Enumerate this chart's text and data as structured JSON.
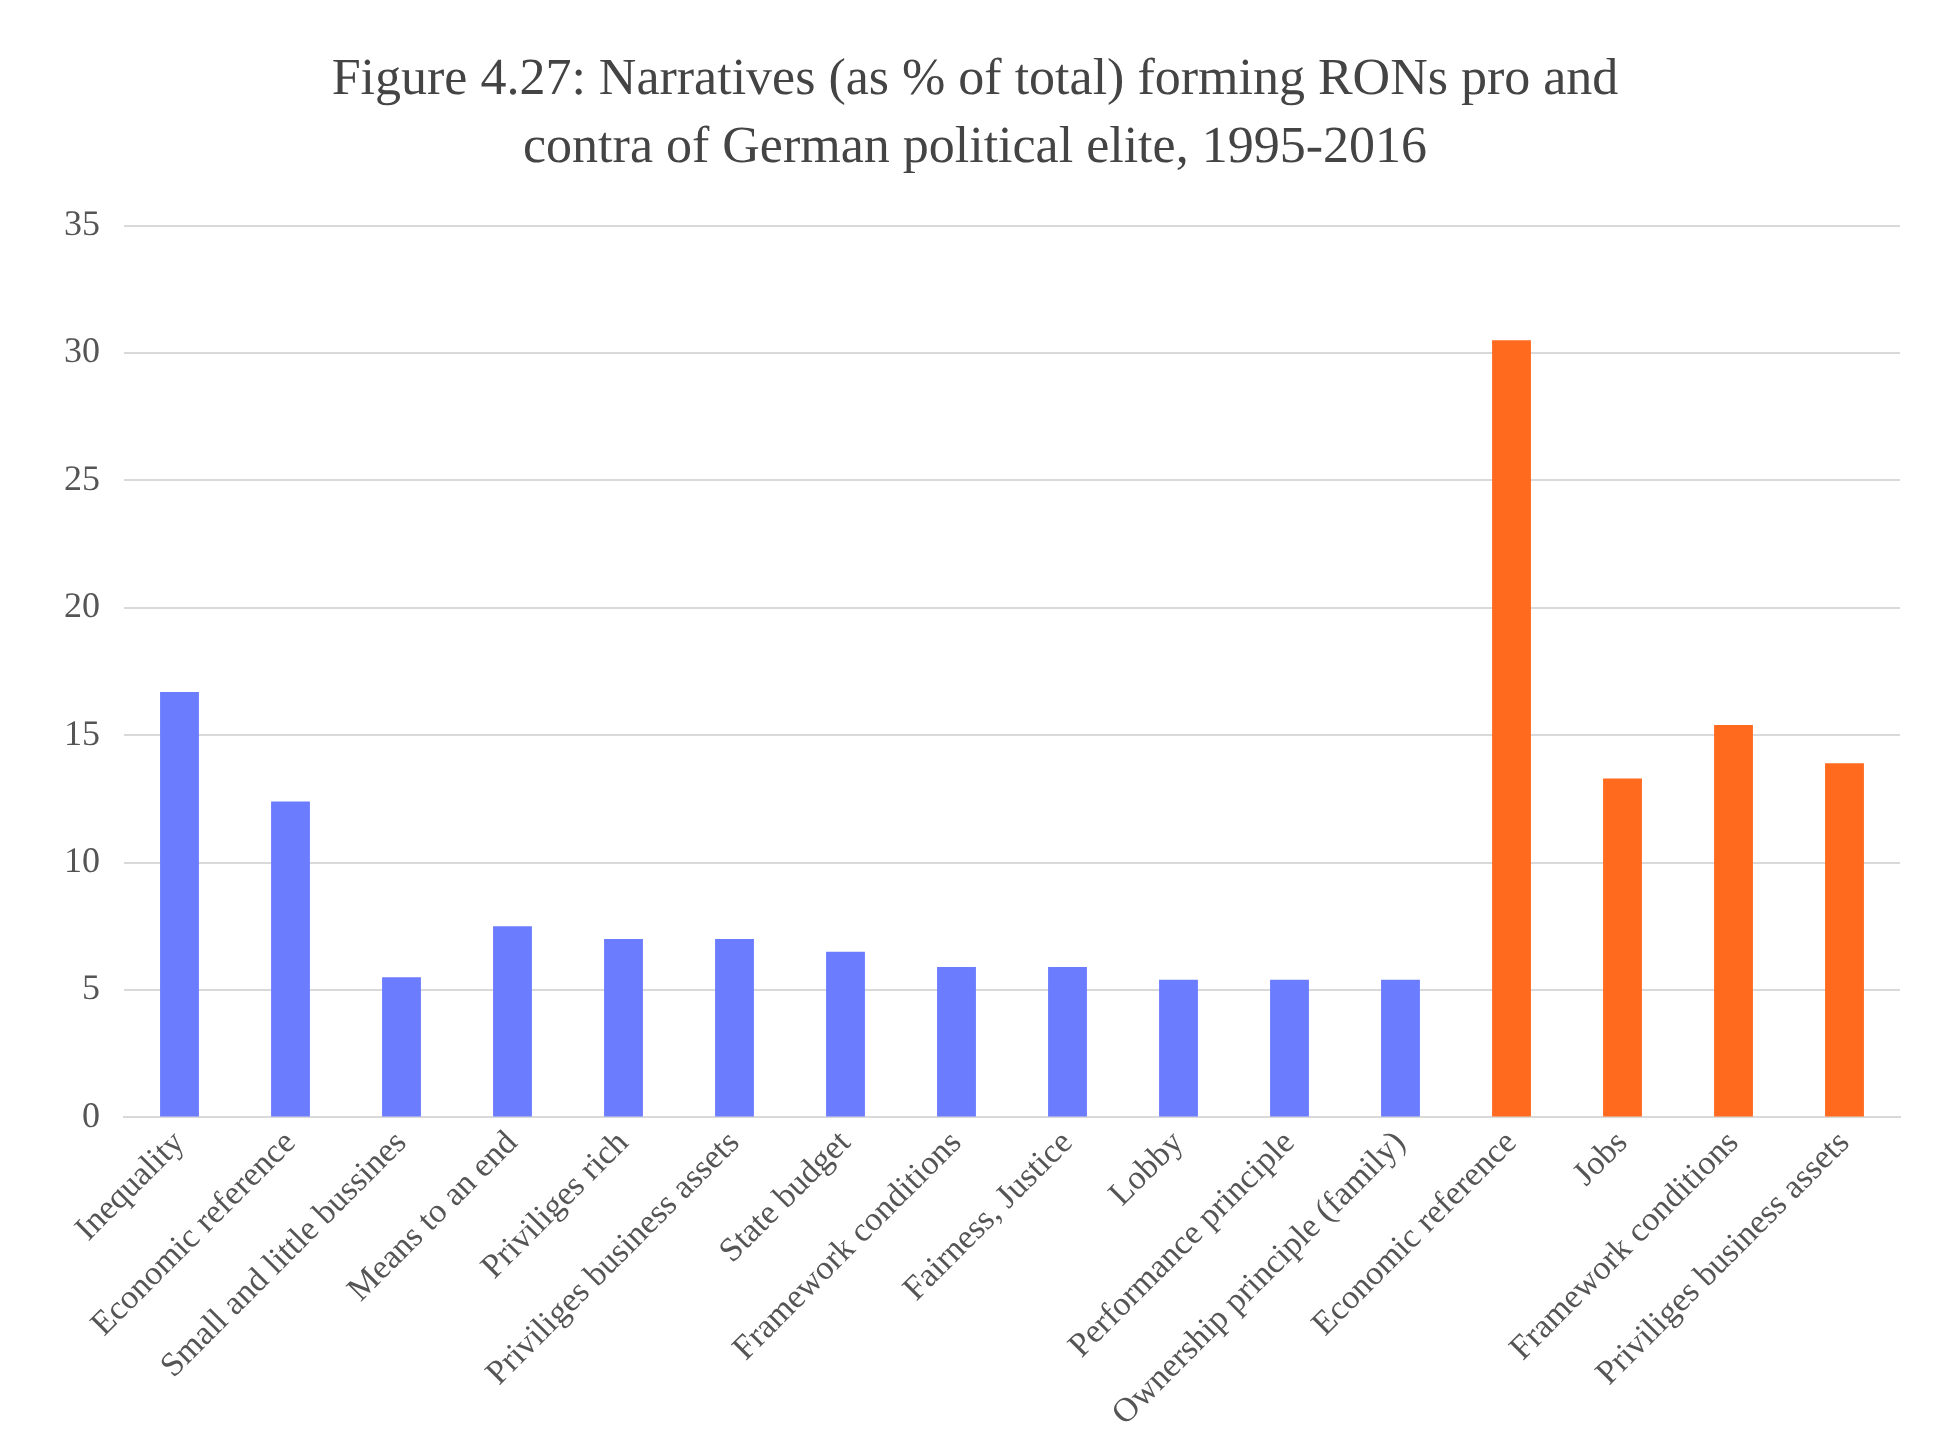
{
  "chart_data": {
    "type": "bar",
    "title": "Figure 4.27: Narratives (as % of total) forming RONs pro and contra of German political elite, 1995-2016",
    "categories": [
      "Inequality",
      "Economic reference",
      "Small and little bussines",
      "Means to an end",
      "Priviliges rich",
      "Priviliges business assets",
      "State budget",
      "Framework conditions",
      "Fairness, Justice",
      "Lobby",
      "Performance principle",
      "Ownership principle (family)",
      "Economic reference",
      "Jobs",
      "Framework conditions",
      "Priviliges business assets"
    ],
    "values": [
      16.7,
      12.4,
      5.5,
      7.5,
      7.0,
      7.0,
      6.5,
      5.9,
      5.9,
      5.4,
      5.4,
      5.4,
      30.5,
      13.3,
      15.4,
      13.9
    ],
    "colors": [
      "#6b7cff",
      "#6b7cff",
      "#6b7cff",
      "#6b7cff",
      "#6b7cff",
      "#6b7cff",
      "#6b7cff",
      "#6b7cff",
      "#6b7cff",
      "#6b7cff",
      "#6b7cff",
      "#6b7cff",
      "#ff6a1f",
      "#ff6a1f",
      "#ff6a1f",
      "#ff6a1f"
    ],
    "ylim": [
      0,
      35
    ],
    "yticks": [
      0,
      5,
      10,
      15,
      20,
      25,
      30,
      35
    ],
    "grid": "y",
    "legend": false
  }
}
